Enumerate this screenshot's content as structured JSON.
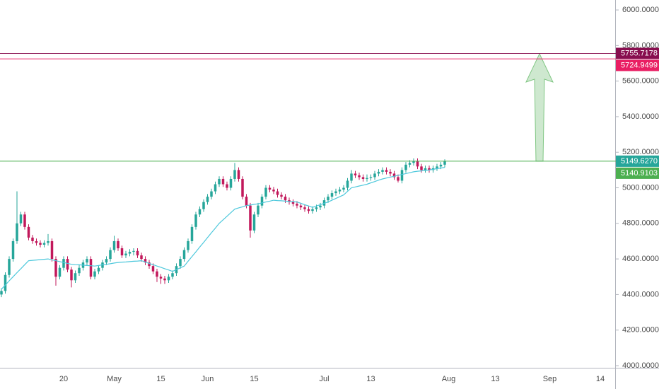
{
  "chart_data": {
    "type": "candlestick",
    "ylim": [
      3988,
      6056
    ],
    "yticks": [
      {
        "value": 4000,
        "label": "4000.0000"
      },
      {
        "value": 4200,
        "label": "4200.0000"
      },
      {
        "value": 4400,
        "label": "4400.0000"
      },
      {
        "value": 4600,
        "label": "4600.0000"
      },
      {
        "value": 4800,
        "label": "4800.0000"
      },
      {
        "value": 5000,
        "label": "5000.0000"
      },
      {
        "value": 5200,
        "label": "5200.0000"
      },
      {
        "value": 5400,
        "label": "5400.0000"
      },
      {
        "value": 5600,
        "label": "5600.0000"
      },
      {
        "value": 5800,
        "label": "5800.0000"
      },
      {
        "value": 6000,
        "label": "6000.0000"
      }
    ],
    "up_color": "#26a69a",
    "down_color": "#c2185b",
    "ma_color": "#4dc8dc",
    "categories": [
      null,
      null,
      null,
      null,
      null,
      null,
      null,
      null,
      null,
      null,
      null,
      null,
      null,
      null,
      null,
      null,
      "20",
      null,
      null,
      null,
      null,
      null,
      null,
      null,
      null,
      null,
      null,
      null,
      null,
      "May",
      null,
      null,
      null,
      null,
      null,
      null,
      null,
      null,
      null,
      null,
      null,
      "15",
      null,
      null,
      null,
      null,
      null,
      null,
      null,
      null,
      null,
      null,
      null,
      "Jun",
      null,
      null,
      null,
      null,
      null,
      null,
      null,
      null,
      null,
      null,
      null,
      "15",
      null,
      null,
      null,
      null,
      null,
      null,
      null,
      null,
      null,
      null,
      null,
      null,
      null,
      null,
      null,
      null,
      null,
      "Jul",
      null,
      null,
      null,
      null,
      null,
      null,
      null,
      null,
      null,
      null,
      null,
      "13",
      null,
      null,
      null,
      null,
      null,
      null,
      null,
      null,
      null,
      null,
      null,
      null,
      null,
      null,
      null,
      null,
      null,
      null,
      null,
      "Aug",
      null,
      null,
      null,
      null,
      null,
      null,
      null,
      null,
      null,
      null,
      null,
      "13",
      null,
      null,
      null,
      null,
      null,
      null,
      null,
      null,
      null,
      null,
      null,
      null,
      null,
      "Sep",
      null,
      null,
      null,
      null,
      null,
      null,
      null,
      null,
      null,
      null,
      null,
      null,
      "14",
      null,
      null,
      null
    ],
    "candles": [
      [
        4400,
        4435,
        4385,
        4420
      ],
      [
        4420,
        4525,
        4405,
        4510
      ],
      [
        4510,
        4615,
        4495,
        4600
      ],
      [
        4600,
        4715,
        4585,
        4700
      ],
      [
        4700,
        4980,
        4685,
        4800
      ],
      [
        4800,
        4865,
        4785,
        4850
      ],
      [
        4850,
        4865,
        4765,
        4780
      ],
      [
        4780,
        4795,
        4705,
        4720
      ],
      [
        4720,
        4735,
        4685,
        4700
      ],
      [
        4700,
        4715,
        4675,
        4690
      ],
      [
        4690,
        4705,
        4665,
        4680
      ],
      [
        4680,
        4705,
        4665,
        4690
      ],
      [
        4690,
        4740,
        4675,
        4700
      ],
      [
        4700,
        4715,
        4585,
        4600
      ],
      [
        4600,
        4615,
        4450,
        4500
      ],
      [
        4500,
        4565,
        4485,
        4550
      ],
      [
        4550,
        4615,
        4535,
        4600
      ],
      [
        4600,
        4615,
        4525,
        4540
      ],
      [
        4540,
        4555,
        4440,
        4480
      ],
      [
        4480,
        4535,
        4465,
        4520
      ],
      [
        4520,
        4565,
        4505,
        4550
      ],
      [
        4550,
        4595,
        4535,
        4580
      ],
      [
        4580,
        4615,
        4565,
        4600
      ],
      [
        4600,
        4615,
        4485,
        4500
      ],
      [
        4500,
        4545,
        4485,
        4530
      ],
      [
        4530,
        4565,
        4515,
        4550
      ],
      [
        4550,
        4595,
        4535,
        4580
      ],
      [
        4580,
        4615,
        4565,
        4600
      ],
      [
        4600,
        4665,
        4585,
        4650
      ],
      [
        4650,
        4730,
        4635,
        4700
      ],
      [
        4700,
        4715,
        4645,
        4660
      ],
      [
        4660,
        4675,
        4605,
        4620
      ],
      [
        4620,
        4645,
        4605,
        4630
      ],
      [
        4630,
        4655,
        4615,
        4640
      ],
      [
        4640,
        4660,
        4620,
        4645
      ],
      [
        4645,
        4660,
        4605,
        4620
      ],
      [
        4620,
        4635,
        4585,
        4600
      ],
      [
        4600,
        4615,
        4565,
        4580
      ],
      [
        4580,
        4595,
        4545,
        4560
      ],
      [
        4560,
        4575,
        4515,
        4530
      ],
      [
        4530,
        4545,
        4470,
        4500
      ],
      [
        4500,
        4515,
        4460,
        4490
      ],
      [
        4490,
        4505,
        4460,
        4480
      ],
      [
        4480,
        4515,
        4465,
        4500
      ],
      [
        4500,
        4535,
        4485,
        4520
      ],
      [
        4520,
        4575,
        4505,
        4560
      ],
      [
        4560,
        4615,
        4545,
        4600
      ],
      [
        4600,
        4665,
        4585,
        4650
      ],
      [
        4650,
        4715,
        4635,
        4700
      ],
      [
        4700,
        4795,
        4685,
        4780
      ],
      [
        4780,
        4865,
        4765,
        4850
      ],
      [
        4850,
        4895,
        4835,
        4880
      ],
      [
        4880,
        4935,
        4865,
        4920
      ],
      [
        4920,
        4965,
        4905,
        4950
      ],
      [
        4950,
        4995,
        4935,
        4980
      ],
      [
        4980,
        5035,
        4965,
        5020
      ],
      [
        5020,
        5065,
        5005,
        5050
      ],
      [
        5050,
        5065,
        5005,
        5020
      ],
      [
        5020,
        5035,
        4985,
        5000
      ],
      [
        5000,
        5065,
        4985,
        5050
      ],
      [
        5050,
        5140,
        5035,
        5100
      ],
      [
        5100,
        5115,
        5035,
        5050
      ],
      [
        5050,
        5065,
        4935,
        4950
      ],
      [
        4950,
        4965,
        4885,
        4900
      ],
      [
        4900,
        4915,
        4720,
        4760
      ],
      [
        4760,
        4865,
        4745,
        4850
      ],
      [
        4850,
        4915,
        4835,
        4900
      ],
      [
        4900,
        4965,
        4885,
        4950
      ],
      [
        4950,
        5015,
        4935,
        5000
      ],
      [
        5000,
        5015,
        4975,
        4990
      ],
      [
        4990,
        5005,
        4965,
        4980
      ],
      [
        4980,
        4995,
        4945,
        4960
      ],
      [
        4960,
        4975,
        4935,
        4950
      ],
      [
        4950,
        4965,
        4915,
        4930
      ],
      [
        4930,
        4945,
        4905,
        4920
      ],
      [
        4920,
        4935,
        4895,
        4910
      ],
      [
        4910,
        4925,
        4885,
        4900
      ],
      [
        4900,
        4915,
        4875,
        4890
      ],
      [
        4890,
        4905,
        4865,
        4880
      ],
      [
        4880,
        4895,
        4855,
        4870
      ],
      [
        4870,
        4895,
        4855,
        4880
      ],
      [
        4880,
        4905,
        4865,
        4890
      ],
      [
        4890,
        4915,
        4875,
        4900
      ],
      [
        4900,
        4945,
        4885,
        4930
      ],
      [
        4930,
        4965,
        4915,
        4950
      ],
      [
        4950,
        4985,
        4935,
        4970
      ],
      [
        4970,
        4995,
        4955,
        4980
      ],
      [
        4980,
        5005,
        4965,
        4990
      ],
      [
        4990,
        5015,
        4975,
        5000
      ],
      [
        5000,
        5055,
        4985,
        5040
      ],
      [
        5040,
        5100,
        5025,
        5080
      ],
      [
        5080,
        5095,
        5055,
        5070
      ],
      [
        5070,
        5085,
        5045,
        5060
      ],
      [
        5060,
        5075,
        5035,
        5050
      ],
      [
        5050,
        5075,
        5035,
        5055
      ],
      [
        5055,
        5075,
        5040,
        5060
      ],
      [
        5060,
        5095,
        5045,
        5080
      ],
      [
        5080,
        5105,
        5065,
        5090
      ],
      [
        5090,
        5115,
        5075,
        5100
      ],
      [
        5100,
        5115,
        5075,
        5090
      ],
      [
        5090,
        5105,
        5065,
        5080
      ],
      [
        5080,
        5095,
        5045,
        5060
      ],
      [
        5060,
        5075,
        5030,
        5040
      ],
      [
        5040,
        5115,
        5025,
        5100
      ],
      [
        5100,
        5145,
        5085,
        5130
      ],
      [
        5130,
        5155,
        5115,
        5140
      ],
      [
        5140,
        5165,
        5125,
        5150
      ],
      [
        5150,
        5165,
        5105,
        5120
      ],
      [
        5120,
        5135,
        5085,
        5100
      ],
      [
        5100,
        5125,
        5085,
        5110
      ],
      [
        5110,
        5125,
        5085,
        5100
      ],
      [
        5100,
        5125,
        5085,
        5110
      ],
      [
        5110,
        5135,
        5095,
        5120
      ],
      [
        5120,
        5145,
        5105,
        5130
      ],
      [
        5130,
        5160,
        5115,
        5149.627
      ],
      null,
      null,
      null,
      null,
      null,
      null,
      null,
      null,
      null,
      null,
      null,
      null,
      null,
      null,
      null,
      null,
      null,
      null,
      null,
      null,
      null,
      null,
      null,
      null,
      null,
      null,
      null,
      null,
      null,
      null,
      null,
      null,
      null,
      null,
      null,
      null,
      null,
      null,
      null,
      null,
      null,
      null,
      null
    ],
    "ma": [
      4430,
      4453,
      4477,
      4500,
      4523,
      4545,
      4568,
      4590,
      4592,
      4594,
      4596,
      4598,
      4600,
      4595,
      4590,
      4585,
      4580,
      4575,
      4570,
      4568,
      4567,
      4565,
      4563,
      4562,
      4560,
      4563,
      4567,
      4570,
      4573,
      4577,
      4580,
      4582,
      4583,
      4585,
      4587,
      4588,
      4590,
      4583,
      4575,
      4568,
      4560,
      4553,
      4545,
      4538,
      4530,
      4540,
      4550,
      4560,
      4587,
      4613,
      4640,
      4667,
      4693,
      4720,
      4747,
      4773,
      4800,
      4820,
      4840,
      4860,
      4880,
      4887,
      4893,
      4900,
      4903,
      4907,
      4910,
      4915,
      4920,
      4925,
      4930,
      4928,
      4927,
      4925,
      4923,
      4922,
      4920,
      4913,
      4905,
      4898,
      4890,
      4898,
      4905,
      4913,
      4920,
      4930,
      4940,
      4950,
      4960,
      4980,
      5000,
      5005,
      5010,
      5015,
      5020,
      5028,
      5035,
      5043,
      5050,
      5055,
      5060,
      5065,
      5070,
      5075,
      5080,
      5085,
      5090,
      5093,
      5095,
      5098,
      5100,
      5104,
      5108,
      5111,
      5115,
      null,
      null,
      null,
      null,
      null,
      null,
      null,
      null,
      null,
      null,
      null,
      null,
      null,
      null,
      null,
      null,
      null,
      null,
      null,
      null,
      null,
      null,
      null,
      null,
      null,
      null,
      null,
      null,
      null,
      null,
      null,
      null,
      null,
      null,
      null,
      null,
      null,
      null,
      null,
      null,
      null,
      null,
      null
    ],
    "levels": [
      {
        "value": 5755.7178,
        "color": "#880e4f"
      },
      {
        "value": 5724.9499,
        "color": "#e91e63"
      },
      {
        "value": {
          "value": 5149.627,
          "label": "5149.6270"
        },
        "color": "#26a69a",
        "line_color": "#4caf50"
      },
      {
        "value": 5140.9103,
        "color": "#4caf50"
      }
    ]
  }
}
